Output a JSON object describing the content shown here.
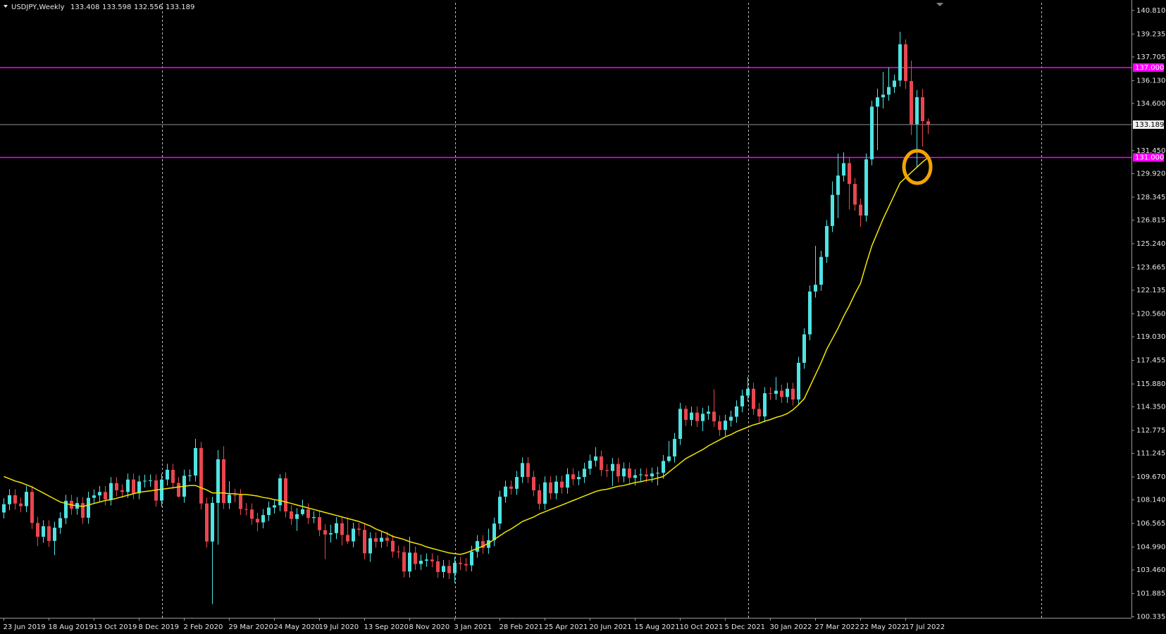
{
  "chart_data": {
    "type": "candlestick",
    "title": "USDJPY,Weekly",
    "up_color": "#4fe3e3",
    "down_color": "#e8464f",
    "categories": [
      "23 Jun 2019",
      null,
      null,
      null,
      null,
      null,
      null,
      null,
      "18 Aug 2019",
      null,
      null,
      null,
      null,
      null,
      null,
      null,
      "13 Oct 2019",
      null,
      null,
      null,
      null,
      null,
      null,
      null,
      "8 Dec 2019",
      null,
      null,
      null,
      null,
      null,
      null,
      null,
      "2 Feb 2020",
      null,
      null,
      null,
      null,
      null,
      null,
      null,
      "29 Mar 2020",
      null,
      null,
      null,
      null,
      null,
      null,
      null,
      "24 May 2020",
      null,
      null,
      null,
      null,
      null,
      null,
      null,
      "19 Jul 2020",
      null,
      null,
      null,
      null,
      null,
      null,
      null,
      "13 Sep 2020",
      null,
      null,
      null,
      null,
      null,
      null,
      null,
      "8 Nov 2020",
      null,
      null,
      null,
      null,
      null,
      null,
      null,
      "3 Jan 2021",
      null,
      null,
      null,
      null,
      null,
      null,
      null,
      "28 Feb 2021",
      null,
      null,
      null,
      null,
      null,
      null,
      null,
      "25 Apr 2021",
      null,
      null,
      null,
      null,
      null,
      null,
      null,
      "20 Jun 2021",
      null,
      null,
      null,
      null,
      null,
      null,
      null,
      "15 Aug 2021",
      null,
      null,
      null,
      null,
      null,
      null,
      null,
      "10 Oct 2021",
      null,
      null,
      null,
      null,
      null,
      null,
      null,
      "5 Dec 2021",
      null,
      null,
      null,
      null,
      null,
      null,
      null,
      "30 Jan 2022",
      null,
      null,
      null,
      null,
      null,
      null,
      null,
      "27 Mar 2022",
      null,
      null,
      null,
      null,
      null,
      null,
      null,
      "22 May 2022",
      null,
      null,
      null,
      null,
      null,
      null,
      null,
      "17 Jul 2022",
      null,
      null,
      null,
      null
    ],
    "open": [
      107.3,
      107.85,
      108.45,
      107.9,
      107.72,
      108.68,
      106.6,
      105.68,
      106.38,
      105.4,
      106.28,
      106.92,
      108.08,
      107.55,
      107.93,
      106.95,
      108.28,
      108.44,
      108.67,
      108.17,
      109.26,
      108.78,
      108.67,
      109.5,
      108.58,
      109.37,
      109.42,
      109.44,
      108.09,
      109.5,
      110.15,
      109.27,
      108.35,
      109.75,
      109.77,
      111.6,
      107.9,
      105.36,
      107.94,
      110.85,
      107.93,
      108.48,
      108.47,
      107.53,
      107.5,
      106.88,
      106.64,
      107.13,
      107.63,
      107.78,
      109.58,
      107.37,
      106.87,
      107.19,
      107.51,
      106.93,
      106.99,
      106.12,
      105.83,
      105.92,
      106.58,
      105.8,
      105.37,
      106.22,
      106.14,
      104.57,
      105.58,
      105.35,
      105.61,
      105.41,
      104.69,
      104.65,
      103.36,
      104.62,
      103.86,
      104.08,
      104.16,
      104.04,
      103.33,
      103.73,
      103.25,
      103.94,
      103.86,
      103.77,
      104.68,
      105.39,
      104.94,
      105.45,
      106.56,
      108.35,
      109.03,
      108.88,
      109.67,
      110.6,
      109.67,
      108.78,
      107.88,
      109.31,
      108.58,
      109.36,
      108.96,
      109.85,
      109.52,
      109.67,
      110.22,
      110.76,
      111.04,
      110.13,
      110.07,
      110.54,
      109.71,
      110.24,
      109.61,
      109.79,
      109.84,
      109.71,
      109.9,
      109.95,
      110.74,
      111.04,
      112.21,
      114.22,
      113.48,
      113.97,
      113.4,
      113.89,
      114.03,
      113.38,
      112.81,
      113.43,
      113.69,
      114.38,
      115.1,
      115.56,
      114.21,
      113.71,
      115.26,
      115.22,
      115.43,
      115.01,
      115.56,
      114.84,
      117.29,
      119.19,
      122.05,
      122.5,
      124.36,
      126.42,
      128.5,
      129.79,
      130.62,
      129.23,
      127.85,
      127.12,
      130.87,
      134.39,
      135.01,
      135.19,
      135.7,
      136.13,
      138.55,
      136.1,
      133.22,
      135.02,
      133.408
    ],
    "high": [
      108.25,
      108.85,
      108.85,
      108.3,
      109.08,
      109.08,
      107.0,
      106.78,
      106.78,
      106.68,
      107.32,
      108.48,
      108.48,
      108.33,
      108.33,
      108.68,
      108.84,
      109.07,
      109.07,
      109.66,
      109.66,
      109.18,
      109.9,
      109.9,
      109.77,
      109.82,
      109.84,
      109.84,
      109.9,
      110.55,
      110.55,
      109.67,
      110.15,
      110.17,
      112.22,
      112.0,
      108.3,
      108.34,
      111.46,
      111.72,
      109.38,
      108.88,
      108.87,
      107.93,
      107.9,
      107.28,
      107.53,
      108.03,
      108.18,
      109.85,
      109.98,
      107.77,
      107.59,
      108.16,
      107.91,
      107.39,
      107.39,
      106.52,
      106.48,
      106.98,
      106.98,
      106.95,
      106.62,
      106.62,
      106.54,
      105.98,
      105.98,
      106.01,
      106.01,
      105.81,
      105.09,
      105.05,
      105.68,
      105.02,
      104.48,
      104.56,
      104.56,
      104.44,
      104.13,
      104.13,
      104.34,
      104.34,
      104.26,
      105.08,
      105.79,
      105.79,
      106.22,
      106.96,
      108.75,
      109.43,
      109.43,
      110.07,
      110.97,
      111.0,
      110.07,
      109.18,
      109.71,
      109.71,
      109.76,
      109.76,
      110.25,
      110.25,
      110.07,
      110.62,
      111.16,
      111.66,
      111.44,
      110.53,
      110.94,
      110.94,
      110.64,
      110.64,
      110.19,
      110.24,
      110.24,
      110.3,
      110.35,
      111.14,
      112.07,
      112.61,
      114.62,
      114.45,
      114.37,
      114.37,
      114.29,
      114.43,
      115.52,
      113.78,
      113.83,
      114.09,
      114.78,
      115.5,
      116.35,
      115.96,
      114.61,
      115.66,
      115.66,
      116.34,
      115.83,
      115.96,
      115.96,
      117.69,
      119.59,
      122.45,
      125.1,
      124.76,
      126.82,
      129.4,
      131.25,
      131.34,
      131.02,
      129.63,
      128.25,
      131.27,
      134.79,
      135.59,
      136.71,
      137.0,
      136.53,
      139.39,
      138.88,
      137.46,
      135.5,
      135.58,
      133.598
    ],
    "low": [
      106.9,
      107.45,
      107.5,
      107.32,
      107.32,
      106.2,
      105.05,
      105.28,
      105.0,
      104.45,
      105.88,
      106.52,
      107.15,
      107.15,
      106.55,
      106.55,
      107.88,
      108.04,
      107.77,
      107.77,
      108.38,
      108.27,
      108.27,
      108.18,
      108.18,
      108.97,
      109.02,
      107.69,
      107.69,
      109.1,
      108.87,
      108.3,
      107.95,
      109.37,
      109.37,
      107.5,
      104.96,
      101.18,
      105.15,
      107.53,
      107.53,
      107.98,
      107.13,
      107.1,
      106.48,
      106.04,
      106.24,
      106.73,
      107.23,
      107.38,
      106.97,
      106.47,
      106.07,
      107.09,
      106.53,
      106.59,
      105.72,
      104.19,
      105.29,
      105.52,
      105.1,
      105.2,
      104.97,
      105.74,
      104.17,
      104.0,
      104.95,
      104.95,
      105.01,
      104.29,
      104.25,
      102.96,
      102.96,
      103.46,
      103.46,
      103.68,
      103.64,
      102.93,
      102.93,
      102.85,
      102.59,
      103.46,
      103.37,
      103.37,
      104.28,
      104.54,
      104.54,
      105.05,
      106.16,
      107.95,
      108.48,
      108.48,
      109.27,
      109.27,
      108.38,
      107.48,
      107.48,
      108.18,
      108.18,
      108.56,
      108.56,
      109.12,
      109.12,
      109.27,
      109.82,
      110.36,
      109.73,
      109.67,
      109.07,
      109.31,
      109.31,
      109.21,
      109.11,
      109.39,
      109.31,
      109.31,
      109.11,
      109.55,
      110.64,
      110.64,
      111.81,
      113.08,
      113.08,
      113.0,
      112.73,
      113.49,
      113.0,
      112.41,
      112.41,
      113.03,
      113.29,
      113.98,
      114.7,
      113.81,
      113.31,
      113.31,
      114.82,
      114.82,
      114.61,
      114.61,
      114.44,
      114.44,
      116.89,
      118.79,
      121.65,
      122.1,
      123.96,
      126.02,
      126.95,
      129.39,
      127.52,
      127.45,
      126.36,
      126.72,
      130.47,
      131.49,
      134.27,
      134.79,
      135.3,
      135.73,
      135.57,
      132.5,
      130.39,
      131.73,
      132.556
    ],
    "close": [
      107.85,
      108.45,
      107.9,
      107.72,
      108.68,
      106.6,
      105.68,
      106.38,
      105.4,
      106.28,
      106.92,
      108.08,
      107.55,
      107.93,
      106.95,
      108.28,
      108.44,
      108.67,
      108.17,
      109.26,
      108.78,
      108.67,
      109.5,
      108.58,
      109.37,
      109.42,
      109.44,
      108.09,
      109.5,
      110.15,
      109.27,
      108.35,
      109.75,
      109.77,
      111.6,
      107.9,
      105.36,
      107.94,
      110.85,
      107.93,
      108.48,
      108.47,
      107.53,
      107.5,
      106.88,
      106.64,
      107.13,
      107.63,
      107.78,
      109.58,
      107.37,
      106.87,
      107.19,
      107.51,
      106.93,
      106.99,
      106.12,
      105.83,
      105.92,
      106.58,
      105.8,
      105.37,
      106.22,
      106.14,
      104.57,
      105.58,
      105.35,
      105.61,
      105.41,
      104.69,
      104.65,
      103.36,
      104.62,
      103.86,
      104.08,
      104.16,
      104.04,
      103.33,
      103.73,
      103.25,
      103.94,
      103.86,
      103.77,
      104.68,
      105.39,
      104.94,
      105.45,
      106.56,
      108.35,
      109.03,
      108.88,
      109.67,
      110.6,
      109.67,
      108.78,
      107.88,
      109.31,
      108.58,
      109.36,
      108.96,
      109.85,
      109.52,
      109.67,
      110.22,
      110.76,
      111.04,
      110.13,
      110.07,
      110.54,
      109.71,
      110.24,
      109.61,
      109.79,
      109.84,
      109.71,
      109.9,
      109.95,
      110.74,
      111.04,
      112.21,
      114.22,
      113.48,
      113.97,
      113.4,
      113.89,
      114.03,
      113.38,
      112.81,
      113.43,
      113.69,
      114.38,
      115.1,
      115.56,
      114.21,
      113.71,
      115.26,
      115.22,
      115.43,
      115.01,
      115.56,
      114.84,
      117.29,
      119.19,
      122.05,
      122.5,
      124.36,
      126.42,
      128.5,
      129.79,
      130.62,
      129.23,
      127.85,
      127.12,
      130.87,
      134.39,
      135.01,
      135.19,
      135.7,
      136.13,
      138.55,
      136.1,
      133.22,
      135.02,
      133.42,
      133.189
    ],
    "ma": {
      "color": "#f2e600",
      "values": [
        109.7,
        109.55,
        109.4,
        109.3,
        109.15,
        109.0,
        108.8,
        108.6,
        108.4,
        108.2,
        108.0,
        107.9,
        107.8,
        107.75,
        107.7,
        107.8,
        107.9,
        108.0,
        108.1,
        108.15,
        108.25,
        108.35,
        108.45,
        108.55,
        108.65,
        108.7,
        108.75,
        108.8,
        108.85,
        108.9,
        108.95,
        109.0,
        109.05,
        109.1,
        109.1,
        108.95,
        108.8,
        108.6,
        108.6,
        108.6,
        108.55,
        108.55,
        108.5,
        108.5,
        108.45,
        108.4,
        108.3,
        108.25,
        108.15,
        108.1,
        108.0,
        107.9,
        107.8,
        107.7,
        107.6,
        107.5,
        107.4,
        107.3,
        107.2,
        107.1,
        107.0,
        106.9,
        106.8,
        106.7,
        106.55,
        106.4,
        106.2,
        106.05,
        105.9,
        105.7,
        105.6,
        105.5,
        105.35,
        105.25,
        105.15,
        105.0,
        104.9,
        104.8,
        104.7,
        104.6,
        104.55,
        104.5,
        104.6,
        104.75,
        104.9,
        105.05,
        105.25,
        105.5,
        105.75,
        106.0,
        106.2,
        106.45,
        106.7,
        106.85,
        107.0,
        107.2,
        107.35,
        107.5,
        107.65,
        107.8,
        107.95,
        108.1,
        108.25,
        108.4,
        108.55,
        108.7,
        108.8,
        108.85,
        108.95,
        109.05,
        109.1,
        109.2,
        109.3,
        109.35,
        109.45,
        109.5,
        109.6,
        109.7,
        110.0,
        110.3,
        110.6,
        110.9,
        111.1,
        111.3,
        111.5,
        111.75,
        111.95,
        112.15,
        112.35,
        112.5,
        112.7,
        112.85,
        113.0,
        113.15,
        113.25,
        113.4,
        113.5,
        113.65,
        113.75,
        113.9,
        114.15,
        114.5,
        114.9,
        115.7,
        116.5,
        117.3,
        118.2,
        118.9,
        119.6,
        120.4,
        121.1,
        121.9,
        122.6,
        123.9,
        125.1,
        126.0,
        126.9,
        127.7,
        128.5,
        129.3,
        129.65,
        130.0,
        130.35,
        130.7,
        131.0
      ]
    },
    "levels": [
      {
        "value": 137,
        "label": "137.000",
        "color": "#ff00ff"
      },
      {
        "value": 131,
        "label": "131.000",
        "color": "#ff00ff"
      }
    ],
    "ylim": [
      100.27,
      141.32
    ],
    "yticks": [
      {
        "value": 140.81,
        "label": "140.810"
      },
      139.235,
      137.705,
      {
        "value": 136.13,
        "label": "136.130"
      },
      {
        "value": 134.6,
        "label": "134.600"
      },
      {
        "value": 131.45,
        "label": "131.450"
      },
      {
        "value": 129.92,
        "label": "129.920"
      },
      128.345,
      126.815,
      {
        "value": 125.24,
        "label": "125.240"
      },
      123.665,
      122.135,
      {
        "value": 120.56,
        "label": "120.560"
      },
      {
        "value": 119.03,
        "label": "119.030"
      },
      117.455,
      {
        "value": 115.88,
        "label": "115.880"
      },
      {
        "value": 114.35,
        "label": "114.350"
      },
      112.775,
      111.245,
      {
        "value": 109.67,
        "label": "109.670"
      },
      {
        "value": 108.14,
        "label": "108.140"
      },
      106.565,
      {
        "value": 104.99,
        "label": "104.990"
      },
      {
        "value": 103.46,
        "label": "103.460"
      },
      101.885,
      100.335
    ]
  }
}
